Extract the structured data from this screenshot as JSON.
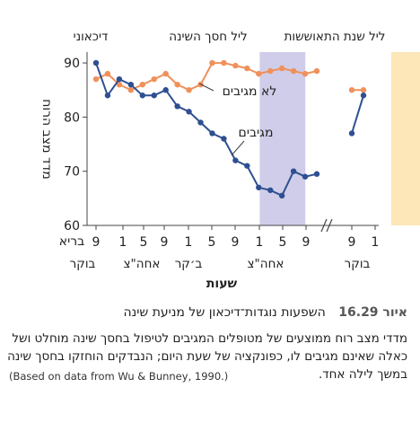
{
  "chart_data": {
    "type": "line",
    "ylabel": "מדד מצב הרוח",
    "xlabel": "שעות",
    "ylim": [
      60,
      92
    ],
    "y_ticks": [
      60,
      70,
      80,
      90
    ],
    "x_tick_labels": [
      "9",
      "1",
      "5",
      "9",
      "1",
      "5",
      "9",
      "1",
      "5",
      "9",
      "9",
      "1"
    ],
    "day_labels": [
      "בריא בוקר",
      "אחה\"צ",
      "ב׳קר",
      "אחה\"צ",
      "בוקר"
    ],
    "period_labels": [
      "דיכאוני",
      "ליל חסך השינה",
      "ליל שנת התאוששות"
    ],
    "shaded_regions": [
      {
        "label": "ליל חסך השינה",
        "color": "#cfcde9",
        "x_range": [
          13.2,
          16.6
        ]
      },
      {
        "label": "ליל שנת התאוששות",
        "color": "#fde6b8",
        "x_range": [
          23.0,
          25.5
        ]
      }
    ],
    "axis_break": true,
    "series": [
      {
        "name": "לא מגיבים",
        "color": "#f0905a",
        "segments": [
          [
            [
              1,
              87
            ],
            [
              2,
              88
            ],
            [
              3,
              86
            ],
            [
              4,
              85
            ],
            [
              5,
              86
            ],
            [
              6,
              87
            ],
            [
              7,
              88
            ],
            [
              8,
              86
            ],
            [
              9,
              85
            ],
            [
              10,
              86
            ],
            [
              11,
              90
            ],
            [
              12,
              90
            ],
            [
              13,
              89.5
            ],
            [
              14,
              89
            ],
            [
              15,
              88
            ],
            [
              16,
              88.5
            ],
            [
              17,
              89
            ],
            [
              18,
              88.5
            ],
            [
              19,
              88
            ],
            [
              20,
              88.5
            ]
          ],
          [
            [
              22,
              85
            ],
            [
              23,
              85
            ]
          ]
        ]
      },
      {
        "name": "מגיבים",
        "color": "#2e4f91",
        "segments": [
          [
            [
              1,
              90
            ],
            [
              2,
              84
            ],
            [
              3,
              87
            ],
            [
              4,
              86
            ],
            [
              5,
              84
            ],
            [
              6,
              84
            ],
            [
              7,
              85
            ],
            [
              8,
              82
            ],
            [
              9,
              81
            ],
            [
              10,
              79
            ],
            [
              11,
              77
            ],
            [
              12,
              76
            ],
            [
              13,
              72
            ],
            [
              14,
              71
            ],
            [
              15,
              67
            ],
            [
              16,
              66.5
            ],
            [
              17,
              65.5
            ],
            [
              18,
              70
            ],
            [
              19,
              69
            ],
            [
              20,
              69.5
            ]
          ],
          [
            [
              22,
              77
            ],
            [
              23,
              84
            ]
          ]
        ]
      }
    ]
  },
  "caption": {
    "figure_number": "איור 16.29",
    "title": "השפעות נוגדות־דיכאון של מניעת שינה",
    "body": "מדדי מצב רוח ממוצעים של מטופלים המגיבים לטיפול בחסך שינה מוחלט ושל כאלה שאינם מגיבים לו, כפונקציה של שעת היום; הנבדקים הוחזקו בחסך שינה במשך לילה אחד.",
    "source": "(Based on data from Wu & Bunney, 1990.)"
  }
}
